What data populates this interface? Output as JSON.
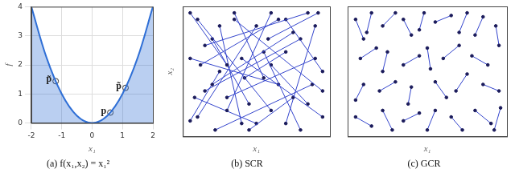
{
  "chart_data": [
    {
      "type": "line",
      "title": "(a) f(x₁,x₂) = x₁²",
      "x_label": "x₁",
      "y_label": "f",
      "x": [
        -2,
        -1.5,
        -1,
        -0.5,
        0,
        0.5,
        1,
        1.5,
        2
      ],
      "values": [
        4,
        2.25,
        1,
        0.25,
        0,
        0.25,
        1,
        2.25,
        4
      ],
      "color": "#2f6fd6",
      "xlim": [
        -2,
        2
      ],
      "xticks": [
        -2,
        -1,
        0,
        1,
        2
      ],
      "ylim": [
        0,
        4
      ],
      "yticks": [
        0,
        1,
        2,
        3,
        4
      ],
      "grid": true,
      "points": [
        {
          "label": "p̃",
          "x": -1.2,
          "y": 1.44
        },
        {
          "label": "p",
          "x": 0.6,
          "y": 0.36
        },
        {
          "label": "p̃",
          "x": 1.1,
          "y": 1.21
        }
      ]
    },
    {
      "type": "scatter",
      "title": "(b) SCR",
      "x_label": "x₁",
      "y_label": "x₂",
      "xlim": [
        0,
        1
      ],
      "ylim": [
        0,
        1
      ],
      "tick_labels": false,
      "grid": false,
      "color": "#3344cc",
      "segments": [
        [
          0.05,
          0.95,
          0.3,
          0.55
        ],
        [
          0.1,
          0.9,
          0.6,
          0.2
        ],
        [
          0.15,
          0.7,
          0.85,
          0.95
        ],
        [
          0.2,
          0.4,
          0.75,
          0.8
        ],
        [
          0.25,
          0.85,
          0.4,
          0.1
        ],
        [
          0.3,
          0.3,
          0.9,
          0.6
        ],
        [
          0.35,
          0.95,
          0.55,
          0.45
        ],
        [
          0.4,
          0.6,
          0.95,
          0.15
        ],
        [
          0.45,
          0.25,
          0.2,
          0.75
        ],
        [
          0.5,
          0.85,
          0.1,
          0.15
        ],
        [
          0.55,
          0.65,
          0.8,
          0.05
        ],
        [
          0.6,
          0.95,
          0.3,
          0.2
        ],
        [
          0.65,
          0.4,
          0.05,
          0.6
        ],
        [
          0.7,
          0.9,
          0.95,
          0.5
        ],
        [
          0.75,
          0.3,
          0.45,
          0.05
        ],
        [
          0.8,
          0.75,
          0.15,
          0.35
        ],
        [
          0.85,
          0.25,
          0.6,
          0.55
        ],
        [
          0.9,
          0.85,
          0.7,
          0.1
        ],
        [
          0.95,
          0.35,
          0.35,
          0.9
        ],
        [
          0.08,
          0.3,
          0.5,
          0.1
        ],
        [
          0.12,
          0.55,
          0.65,
          0.9
        ],
        [
          0.58,
          0.75,
          0.92,
          0.95
        ],
        [
          0.22,
          0.05,
          0.88,
          0.4
        ],
        [
          0.42,
          0.45,
          0.7,
          0.65
        ],
        [
          0.05,
          0.12,
          0.25,
          0.5
        ]
      ]
    },
    {
      "type": "scatter",
      "title": "(c) GCR",
      "x_label": "x₁",
      "xlim": [
        0,
        1
      ],
      "ylim": [
        0,
        1
      ],
      "tick_labels": false,
      "grid": false,
      "color": "#3344cc",
      "segments": [
        [
          0.05,
          0.9,
          0.1,
          0.75
        ],
        [
          0.15,
          0.95,
          0.12,
          0.8
        ],
        [
          0.22,
          0.85,
          0.3,
          0.95
        ],
        [
          0.35,
          0.9,
          0.4,
          0.78
        ],
        [
          0.48,
          0.95,
          0.45,
          0.82
        ],
        [
          0.55,
          0.88,
          0.65,
          0.93
        ],
        [
          0.7,
          0.8,
          0.75,
          0.95
        ],
        [
          0.85,
          0.92,
          0.8,
          0.78
        ],
        [
          0.93,
          0.85,
          0.95,
          0.7
        ],
        [
          0.08,
          0.6,
          0.18,
          0.68
        ],
        [
          0.25,
          0.65,
          0.22,
          0.5
        ],
        [
          0.35,
          0.55,
          0.45,
          0.62
        ],
        [
          0.5,
          0.68,
          0.52,
          0.52
        ],
        [
          0.6,
          0.6,
          0.7,
          0.7
        ],
        [
          0.78,
          0.62,
          0.88,
          0.55
        ],
        [
          0.1,
          0.4,
          0.05,
          0.28
        ],
        [
          0.2,
          0.35,
          0.3,
          0.42
        ],
        [
          0.4,
          0.38,
          0.38,
          0.25
        ],
        [
          0.55,
          0.42,
          0.62,
          0.3
        ],
        [
          0.68,
          0.35,
          0.75,
          0.48
        ],
        [
          0.85,
          0.4,
          0.95,
          0.35
        ],
        [
          0.05,
          0.15,
          0.15,
          0.08
        ],
        [
          0.22,
          0.2,
          0.28,
          0.05
        ],
        [
          0.35,
          0.12,
          0.45,
          0.18
        ],
        [
          0.5,
          0.05,
          0.55,
          0.2
        ],
        [
          0.65,
          0.15,
          0.72,
          0.05
        ],
        [
          0.8,
          0.2,
          0.9,
          0.1
        ],
        [
          0.92,
          0.05,
          0.96,
          0.22
        ]
      ]
    }
  ]
}
